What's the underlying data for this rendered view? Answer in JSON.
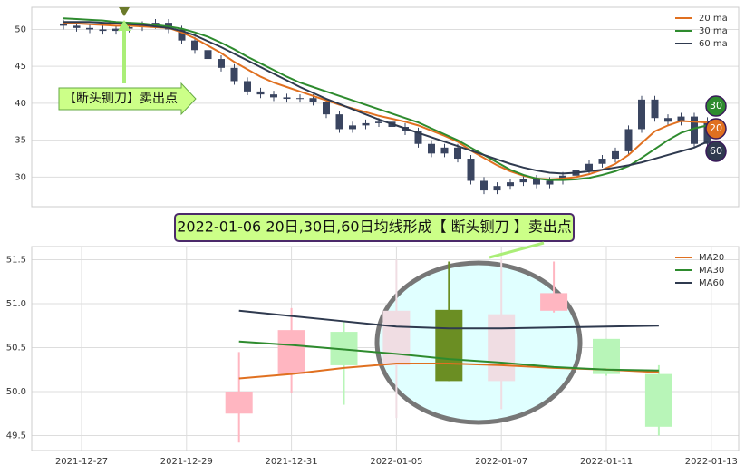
{
  "chart_data": [
    {
      "type": "candlestick",
      "ylim": [
        26,
        53
      ],
      "yticks": [
        30,
        35,
        40,
        45,
        50
      ],
      "grid": true,
      "legend": "top-right",
      "candles": {
        "color": "#3a4560",
        "open": [
          50.8,
          50.5,
          50.2,
          50.0,
          49.8,
          50.1,
          50.3,
          50.6,
          50.9,
          50.0,
          48.5,
          47.2,
          46.0,
          44.8,
          43.0,
          41.6,
          41.2,
          40.8,
          40.6,
          40.7,
          40.2,
          38.5,
          36.5,
          37.0,
          37.3,
          37.5,
          36.8,
          36.2,
          34.5,
          33.2,
          34.0,
          32.5,
          29.5,
          28.2,
          28.8,
          29.3,
          29.8,
          29.0,
          29.5,
          30.2,
          31.0,
          31.8,
          32.5,
          33.5,
          36.5,
          40.5,
          38.0,
          37.5,
          38.2,
          34.5
        ],
        "high": [
          51.3,
          51.0,
          50.7,
          50.5,
          50.6,
          50.8,
          51.1,
          51.4,
          51.4,
          50.5,
          49.0,
          47.7,
          46.5,
          45.3,
          43.5,
          42.1,
          41.7,
          41.3,
          41.2,
          41.2,
          40.7,
          39.0,
          37.5,
          37.8,
          38.0,
          38.0,
          37.3,
          36.7,
          35.0,
          34.5,
          34.5,
          33.0,
          30.0,
          29.3,
          29.8,
          30.3,
          30.3,
          30.0,
          30.7,
          31.5,
          32.3,
          33.0,
          34.0,
          37.0,
          41.0,
          41.0,
          38.5,
          38.7,
          38.7,
          38.1
        ],
        "low": [
          50.0,
          49.7,
          49.5,
          49.3,
          49.3,
          49.6,
          49.8,
          50.1,
          49.5,
          48.0,
          46.7,
          45.5,
          44.3,
          42.5,
          41.1,
          40.7,
          40.3,
          40.1,
          40.1,
          39.7,
          38.0,
          36.0,
          36.0,
          36.5,
          36.8,
          36.3,
          35.7,
          34.0,
          32.7,
          32.7,
          32.0,
          29.0,
          27.7,
          27.7,
          28.3,
          28.8,
          28.5,
          28.5,
          29.0,
          29.7,
          30.5,
          31.3,
          32.0,
          33.0,
          36.0,
          37.5,
          37.0,
          37.0,
          34.0,
          34.0
        ],
        "close": [
          50.5,
          50.2,
          50.0,
          49.8,
          50.1,
          50.3,
          50.6,
          50.9,
          50.0,
          48.5,
          47.2,
          46.0,
          44.8,
          43.0,
          41.6,
          41.2,
          40.8,
          40.6,
          40.7,
          40.2,
          38.5,
          36.5,
          37.0,
          37.3,
          37.5,
          36.8,
          36.2,
          34.5,
          33.2,
          34.0,
          32.5,
          29.5,
          28.2,
          28.8,
          29.3,
          29.8,
          29.0,
          29.5,
          30.2,
          31.0,
          31.8,
          32.5,
          33.5,
          36.5,
          40.5,
          38.0,
          37.5,
          38.2,
          34.5,
          37.6
        ]
      },
      "series": [
        {
          "name": "20 ma",
          "color": "#e07020",
          "values": [
            50.8,
            50.8,
            50.7,
            50.6,
            50.5,
            50.5,
            50.4,
            50.3,
            50.2,
            49.6,
            48.8,
            47.8,
            46.8,
            45.6,
            44.6,
            43.6,
            42.8,
            42.2,
            41.6,
            41.0,
            40.4,
            39.8,
            39.3,
            38.8,
            38.3,
            37.9,
            37.5,
            37.0,
            36.3,
            35.6,
            34.8,
            33.6,
            32.6,
            31.6,
            30.8,
            30.2,
            29.8,
            29.7,
            29.8,
            30.0,
            30.4,
            31.0,
            31.8,
            33.0,
            34.6,
            36.2,
            37.0,
            37.6,
            37.5,
            37.4
          ]
        },
        {
          "name": "30 ma",
          "color": "#2e8b2e",
          "values": [
            51.5,
            51.4,
            51.3,
            51.2,
            51.0,
            50.9,
            50.8,
            50.6,
            50.4,
            50.1,
            49.6,
            49.0,
            48.2,
            47.3,
            46.3,
            45.4,
            44.5,
            43.6,
            42.8,
            42.2,
            41.6,
            41.0,
            40.4,
            39.8,
            39.2,
            38.6,
            38.0,
            37.4,
            36.6,
            35.8,
            35.0,
            34.0,
            33.0,
            32.0,
            31.0,
            30.3,
            29.8,
            29.6,
            29.6,
            29.7,
            29.9,
            30.3,
            30.8,
            31.5,
            32.6,
            33.8,
            35.0,
            36.0,
            36.6,
            37.0
          ]
        },
        {
          "name": "60 ma",
          "color": "#2f3a4f",
          "values": [
            51.0,
            51.0,
            51.0,
            50.9,
            50.8,
            50.7,
            50.6,
            50.4,
            50.2,
            49.8,
            49.2,
            48.4,
            47.6,
            46.7,
            45.8,
            44.9,
            44.0,
            43.1,
            42.2,
            41.4,
            40.6,
            39.9,
            39.2,
            38.5,
            37.8,
            37.2,
            36.6,
            36.0,
            35.4,
            34.8,
            34.2,
            33.6,
            33.0,
            32.4,
            31.8,
            31.3,
            30.9,
            30.6,
            30.5,
            30.6,
            30.8,
            31.0,
            31.3,
            31.6,
            32.0,
            32.5,
            33.0,
            33.5,
            34.0,
            34.8
          ]
        }
      ],
      "end_labels": [
        {
          "text": "30",
          "color": "#2e8b2e"
        },
        {
          "text": "20",
          "color": "#e07020"
        },
        {
          "text": "60",
          "color": "#2f3a4f"
        }
      ],
      "annotation": "【断头铡刀】卖出点"
    },
    {
      "type": "candlestick",
      "annotation": "2022-01-06 20日,30日,60日均线形成【 断头铡刀 】卖出点",
      "categories": [
        "2021-12-27",
        null,
        "2021-12-29",
        null,
        "2021-12-31",
        null,
        "2022-01-05",
        null,
        "2022-01-07",
        null,
        "2022-01-11",
        null,
        "2022-01-13"
      ],
      "ylim": [
        49.33,
        51.65
      ],
      "yticks": [
        49.5,
        {
          "value": 50.0,
          "label": "50.0"
        },
        50.5,
        {
          "value": 51.0,
          "label": "51.0"
        },
        51.5
      ],
      "grid": true,
      "legend": "top-right",
      "candles": {
        "colors": [
          null,
          null,
          null,
          "#ffb6c1",
          "#ffb6c1",
          "#b8f5b8",
          "#f0dde3",
          "#6b8e23",
          "#f0dde3",
          "#ffb6c1",
          "#b8f5b8",
          "#b8f5b8",
          null
        ],
        "open": [
          null,
          null,
          null,
          49.75,
          50.2,
          50.68,
          50.92,
          50.93,
          50.88,
          50.92,
          50.6,
          50.2,
          null
        ],
        "high": [
          null,
          null,
          null,
          50.45,
          50.95,
          50.8,
          51.5,
          51.48,
          51.5,
          51.48,
          50.6,
          50.3,
          null
        ],
        "low": [
          null,
          null,
          null,
          49.42,
          49.98,
          49.85,
          49.7,
          50.12,
          49.8,
          50.9,
          50.18,
          49.5,
          null
        ],
        "close": [
          null,
          null,
          null,
          50.0,
          50.7,
          50.3,
          50.3,
          50.12,
          50.12,
          51.12,
          50.2,
          49.6,
          null
        ]
      },
      "series": [
        {
          "name": "MA20",
          "color": "#e07020",
          "values": [
            null,
            null,
            null,
            50.15,
            50.2,
            50.27,
            50.32,
            50.32,
            50.3,
            50.27,
            50.25,
            50.22,
            null
          ]
        },
        {
          "name": "MA30",
          "color": "#2e8b2e",
          "values": [
            null,
            null,
            null,
            50.57,
            50.53,
            50.48,
            50.43,
            50.37,
            50.33,
            50.28,
            50.25,
            50.24,
            null
          ]
        },
        {
          "name": "MA60",
          "color": "#2f3a4f",
          "values": [
            null,
            null,
            null,
            50.92,
            50.86,
            50.8,
            50.74,
            50.72,
            50.72,
            50.73,
            50.74,
            50.75,
            null
          ]
        }
      ]
    }
  ]
}
